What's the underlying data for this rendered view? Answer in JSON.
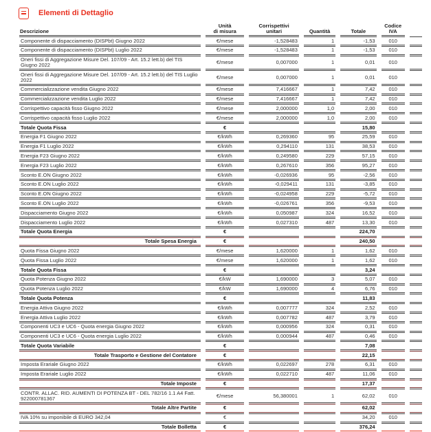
{
  "colors": {
    "accent": "#e8301f",
    "line": "#424242",
    "maroon": "#7a2f2f",
    "text": "#303030",
    "text-strong": "#1c1c1c"
  },
  "header": {
    "title": "Elementi di Dettaglio"
  },
  "table": {
    "columns": [
      "Descrizione",
      "Unità\ndi misura",
      "Corrispettivi\nunitari",
      "Quantità",
      "Totale",
      "Codice\nIVA",
      ""
    ],
    "rows": [
      {
        "desc": "Componente di dispacciamento (DISPbt) Giugno 2022",
        "unit": "€/mese",
        "price": "-1,528483",
        "qty": "1",
        "total": "-1,53",
        "vat": "010",
        "style": "normal"
      },
      {
        "desc": "Componente di dispacciamento (DISPbt) Luglio 2022",
        "unit": "€/mese",
        "price": "-1,528483",
        "qty": "1",
        "total": "-1,53",
        "vat": "010",
        "style": "normal"
      },
      {
        "desc": "Oneri fissi di Aggregazione Misure Del. 107/09 - Art. 15.2 lett.b) del TIS Giugno 2022",
        "unit": "€/mese",
        "price": "0,007000",
        "qty": "1",
        "total": "0,01",
        "vat": "010",
        "style": "normal"
      },
      {
        "desc": "Oneri fissi di Aggregazione Misure Del. 107/09 - Art. 15.2 lett.b) del TIS Luglio 2022",
        "unit": "€/mese",
        "price": "0,007000",
        "qty": "1",
        "total": "0,01",
        "vat": "010",
        "style": "normal"
      },
      {
        "desc": "Commercializzazione vendita Giugno 2022",
        "unit": "€/mese",
        "price": "7,416667",
        "qty": "1",
        "total": "7,42",
        "vat": "010",
        "style": "normal"
      },
      {
        "desc": "Commercializzazione vendita Luglio 2022",
        "unit": "€/mese",
        "price": "7,416667",
        "qty": "1",
        "total": "7,42",
        "vat": "010",
        "style": "normal"
      },
      {
        "desc": "Corrispettivo capacità fisso Giugno 2022",
        "unit": "€/mese",
        "price": "2,000000",
        "qty": "1,0",
        "total": "2,00",
        "vat": "010",
        "style": "normal"
      },
      {
        "desc": "Corrispettivo capacità fisso Luglio 2022",
        "unit": "€/mese",
        "price": "2,000000",
        "qty": "1,0",
        "total": "2,00",
        "vat": "010",
        "style": "normal"
      },
      {
        "desc": "Totale Quota Fissa",
        "unit": "€",
        "price": "",
        "qty": "",
        "total": "15,80",
        "vat": "",
        "style": "subtotal"
      },
      {
        "desc": "Energia F1 Giugno 2022",
        "unit": "€/kWh",
        "price": "0,269360",
        "qty": "95",
        "total": "25,59",
        "vat": "010",
        "style": "normal"
      },
      {
        "desc": "Energia F1 Luglio 2022",
        "unit": "€/kWh",
        "price": "0,294110",
        "qty": "131",
        "total": "38,53",
        "vat": "010",
        "style": "normal"
      },
      {
        "desc": "Energia F23 Giugno 2022",
        "unit": "€/kWh",
        "price": "0,249580",
        "qty": "229",
        "total": "57,15",
        "vat": "010",
        "style": "normal"
      },
      {
        "desc": "Energia F23 Luglio 2022",
        "unit": "€/kWh",
        "price": "0,267610",
        "qty": "356",
        "total": "95,27",
        "vat": "010",
        "style": "normal"
      },
      {
        "desc": "Sconto E.ON Giugno 2022",
        "unit": "€/kWh",
        "price": "-0,026936",
        "qty": "95",
        "total": "-2,56",
        "vat": "010",
        "style": "normal"
      },
      {
        "desc": "Sconto E.ON Luglio 2022",
        "unit": "€/kWh",
        "price": "-0,029411",
        "qty": "131",
        "total": "-3,85",
        "vat": "010",
        "style": "normal"
      },
      {
        "desc": "Sconto E.ON Giugno 2022",
        "unit": "€/kWh",
        "price": "-0,024958",
        "qty": "229",
        "total": "-5,72",
        "vat": "010",
        "style": "normal"
      },
      {
        "desc": "Sconto E.ON Luglio 2022",
        "unit": "€/kWh",
        "price": "-0,026761",
        "qty": "356",
        "total": "-9,53",
        "vat": "010",
        "style": "normal"
      },
      {
        "desc": "Dispacciamento Giugno 2022",
        "unit": "€/kWh",
        "price": "0,050987",
        "qty": "324",
        "total": "16,52",
        "vat": "010",
        "style": "normal"
      },
      {
        "desc": "Dispacciamento Luglio 2022",
        "unit": "€/kWh",
        "price": "0,027310",
        "qty": "487",
        "total": "13,30",
        "vat": "010",
        "style": "normal"
      },
      {
        "desc": "Totale Quota Energia",
        "unit": "€",
        "price": "",
        "qty": "",
        "total": "224,70",
        "vat": "",
        "style": "subtotal"
      },
      {
        "desc": "Totale Spesa Energia",
        "unit": "€",
        "price": "",
        "qty": "",
        "total": "240,50",
        "vat": "",
        "style": "grandtotal"
      },
      {
        "desc": "Quota Fissa Giugno 2022",
        "unit": "€/mese",
        "price": "1,620000",
        "qty": "1",
        "total": "1,62",
        "vat": "010",
        "style": "normal"
      },
      {
        "desc": "Quota Fissa Luglio 2022",
        "unit": "€/mese",
        "price": "1,620000",
        "qty": "1",
        "total": "1,62",
        "vat": "010",
        "style": "normal"
      },
      {
        "desc": "Totale Quota Fissa",
        "unit": "€",
        "price": "",
        "qty": "",
        "total": "3,24",
        "vat": "",
        "style": "subtotal"
      },
      {
        "desc": "Quota Potenza Giugno 2022",
        "unit": "€/kW",
        "price": "1,690000",
        "qty": "3",
        "total": "5,07",
        "vat": "010",
        "style": "normal"
      },
      {
        "desc": "Quota Potenza Luglio 2022",
        "unit": "€/kW",
        "price": "1,690000",
        "qty": "4",
        "total": "6,76",
        "vat": "010",
        "style": "normal"
      },
      {
        "desc": "Totale Quota Potenza",
        "unit": "€",
        "price": "",
        "qty": "",
        "total": "11,83",
        "vat": "",
        "style": "subtotal"
      },
      {
        "desc": "Energia Attiva Giugno 2022",
        "unit": "€/kWh",
        "price": "0,007777",
        "qty": "324",
        "total": "2,52",
        "vat": "010",
        "style": "normal"
      },
      {
        "desc": "Energia Attiva Luglio 2022",
        "unit": "€/kWh",
        "price": "0,007782",
        "qty": "487",
        "total": "3,79",
        "vat": "010",
        "style": "normal"
      },
      {
        "desc": "Componenti UC3 e UC6 - Quota energia Giugno 2022",
        "unit": "€/kWh",
        "price": "0,000956",
        "qty": "324",
        "total": "0,31",
        "vat": "010",
        "style": "normal"
      },
      {
        "desc": "Componenti UC3 e UC6 - Quota energia Luglio 2022",
        "unit": "€/kWh",
        "price": "0,000944",
        "qty": "487",
        "total": "0,46",
        "vat": "010",
        "style": "normal"
      },
      {
        "desc": "Totale Quota Variabile",
        "unit": "€",
        "price": "",
        "qty": "",
        "total": "7,08",
        "vat": "",
        "style": "subtotal"
      },
      {
        "desc": "Totale Trasporto e Gestione del Contatore",
        "unit": "€",
        "price": "",
        "qty": "",
        "total": "22,15",
        "vat": "",
        "style": "grandtotal"
      },
      {
        "desc": "Imposta Erariale Giugno 2022",
        "unit": "€/kWh",
        "price": "0,022697",
        "qty": "278",
        "total": "6,31",
        "vat": "010",
        "style": "normal"
      },
      {
        "desc": "Imposta Erariale Luglio 2022",
        "unit": "€/kWh",
        "price": "0,022710",
        "qty": "487",
        "total": "11,06",
        "vat": "010",
        "style": "normal"
      },
      {
        "desc": "Totale Imposte",
        "unit": "€",
        "price": "",
        "qty": "",
        "total": "17,37",
        "vat": "",
        "style": "grandtotal"
      },
      {
        "desc": "CONTR. ALLAC. RID. AUMENTI DI POTENZA BT - DEL 782/16 1.1 A4 Fatt. 922000781367",
        "unit": "€/mese",
        "price": "56,380001",
        "qty": "1",
        "total": "62,02",
        "vat": "010",
        "style": "normal"
      },
      {
        "desc": "Totale Altre Partite",
        "unit": "€",
        "price": "",
        "qty": "",
        "total": "62,02",
        "vat": "",
        "style": "grandtotal"
      },
      {
        "desc": "IVA 10% su imponibile di EURO 342,04",
        "unit": "€",
        "price": "",
        "qty": "",
        "total": "34,20",
        "vat": "010",
        "style": "normal"
      },
      {
        "desc": "Totale Bolletta",
        "unit": "€",
        "price": "",
        "qty": "",
        "total": "376,24",
        "vat": "",
        "style": "final"
      }
    ]
  }
}
